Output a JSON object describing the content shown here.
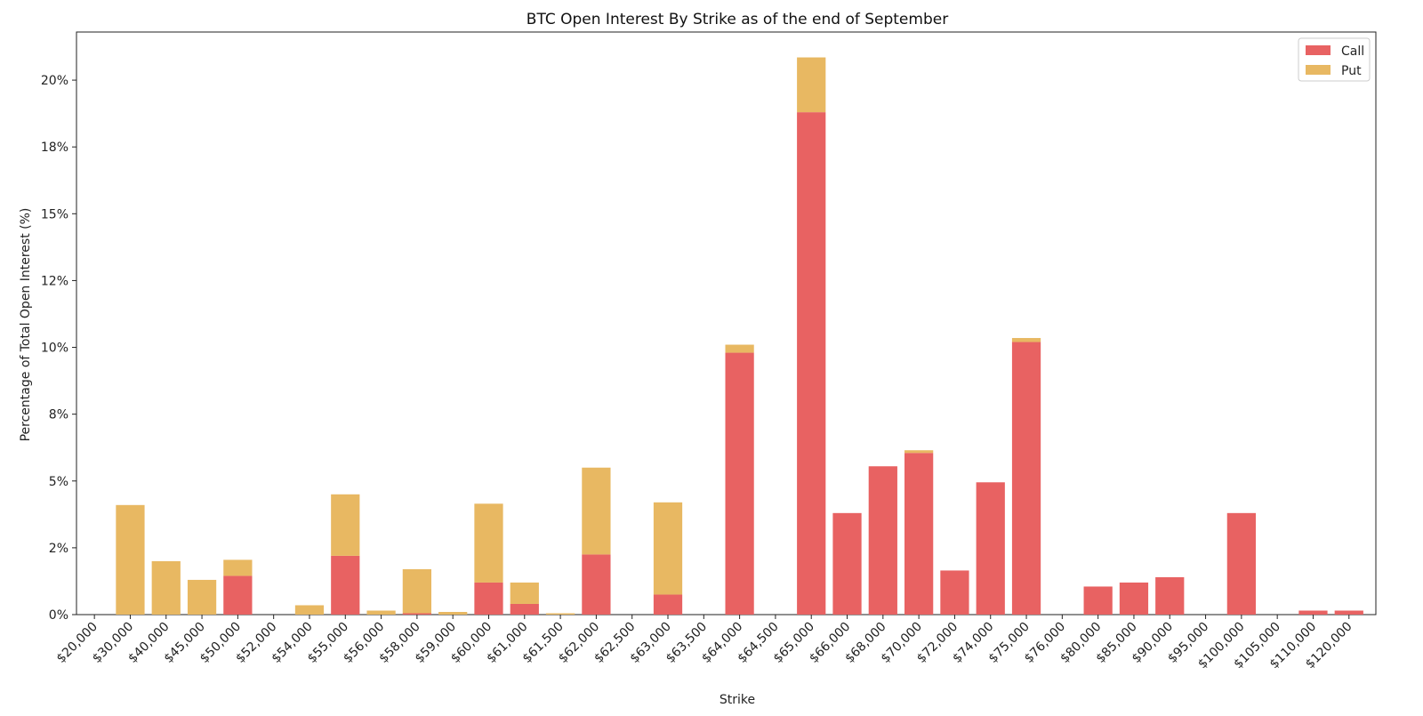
{
  "chart_data": {
    "type": "bar",
    "stacked": true,
    "title": "BTC Open Interest By Strike as of the end of September",
    "xlabel": "Strike",
    "ylabel": "Percentage of Total Open Interest (%)",
    "ylim": [
      0,
      21.8
    ],
    "yticks": [
      {
        "value": 0,
        "label": "0%"
      },
      {
        "value": 2.5,
        "label": "2%"
      },
      {
        "value": 5,
        "label": "5%"
      },
      {
        "value": 7.5,
        "label": "8%"
      },
      {
        "value": 10,
        "label": "10%"
      },
      {
        "value": 12.5,
        "label": "12%"
      },
      {
        "value": 15,
        "label": "15%"
      },
      {
        "value": 17.5,
        "label": "18%"
      },
      {
        "value": 20,
        "label": "20%"
      }
    ],
    "grid": false,
    "legend_position": "top-right",
    "categories": [
      "$20,000",
      "$30,000",
      "$40,000",
      "$45,000",
      "$50,000",
      "$52,000",
      "$54,000",
      "$55,000",
      "$56,000",
      "$58,000",
      "$59,000",
      "$60,000",
      "$61,000",
      "$61,500",
      "$62,000",
      "$62,500",
      "$63,000",
      "$63,500",
      "$64,000",
      "$64,500",
      "$65,000",
      "$66,000",
      "$68,000",
      "$70,000",
      "$72,000",
      "$74,000",
      "$75,000",
      "$76,000",
      "$80,000",
      "$85,000",
      "$90,000",
      "$95,000",
      "$100,000",
      "$105,000",
      "$110,000",
      "$120,000"
    ],
    "series": [
      {
        "name": "Call",
        "color": "#e86262",
        "values": [
          0,
          0,
          0,
          0,
          1.45,
          0,
          0,
          2.2,
          0,
          0.05,
          0,
          1.2,
          0.4,
          0,
          2.25,
          0,
          0.75,
          0,
          9.8,
          0,
          18.8,
          3.8,
          5.55,
          6.05,
          1.65,
          4.95,
          10.2,
          0,
          1.05,
          1.2,
          1.4,
          0,
          3.8,
          0,
          0.15,
          0.15
        ]
      },
      {
        "name": "Put",
        "color": "#e8b862",
        "values": [
          0,
          4.1,
          2.0,
          1.3,
          0.6,
          0,
          0.35,
          2.3,
          0.15,
          1.65,
          0.1,
          2.95,
          0.8,
          0.05,
          3.25,
          0,
          3.45,
          0,
          0.3,
          0,
          2.05,
          0,
          0,
          0.1,
          0,
          0,
          0.15,
          0,
          0,
          0,
          0,
          0,
          0,
          0,
          0,
          0
        ]
      }
    ]
  }
}
